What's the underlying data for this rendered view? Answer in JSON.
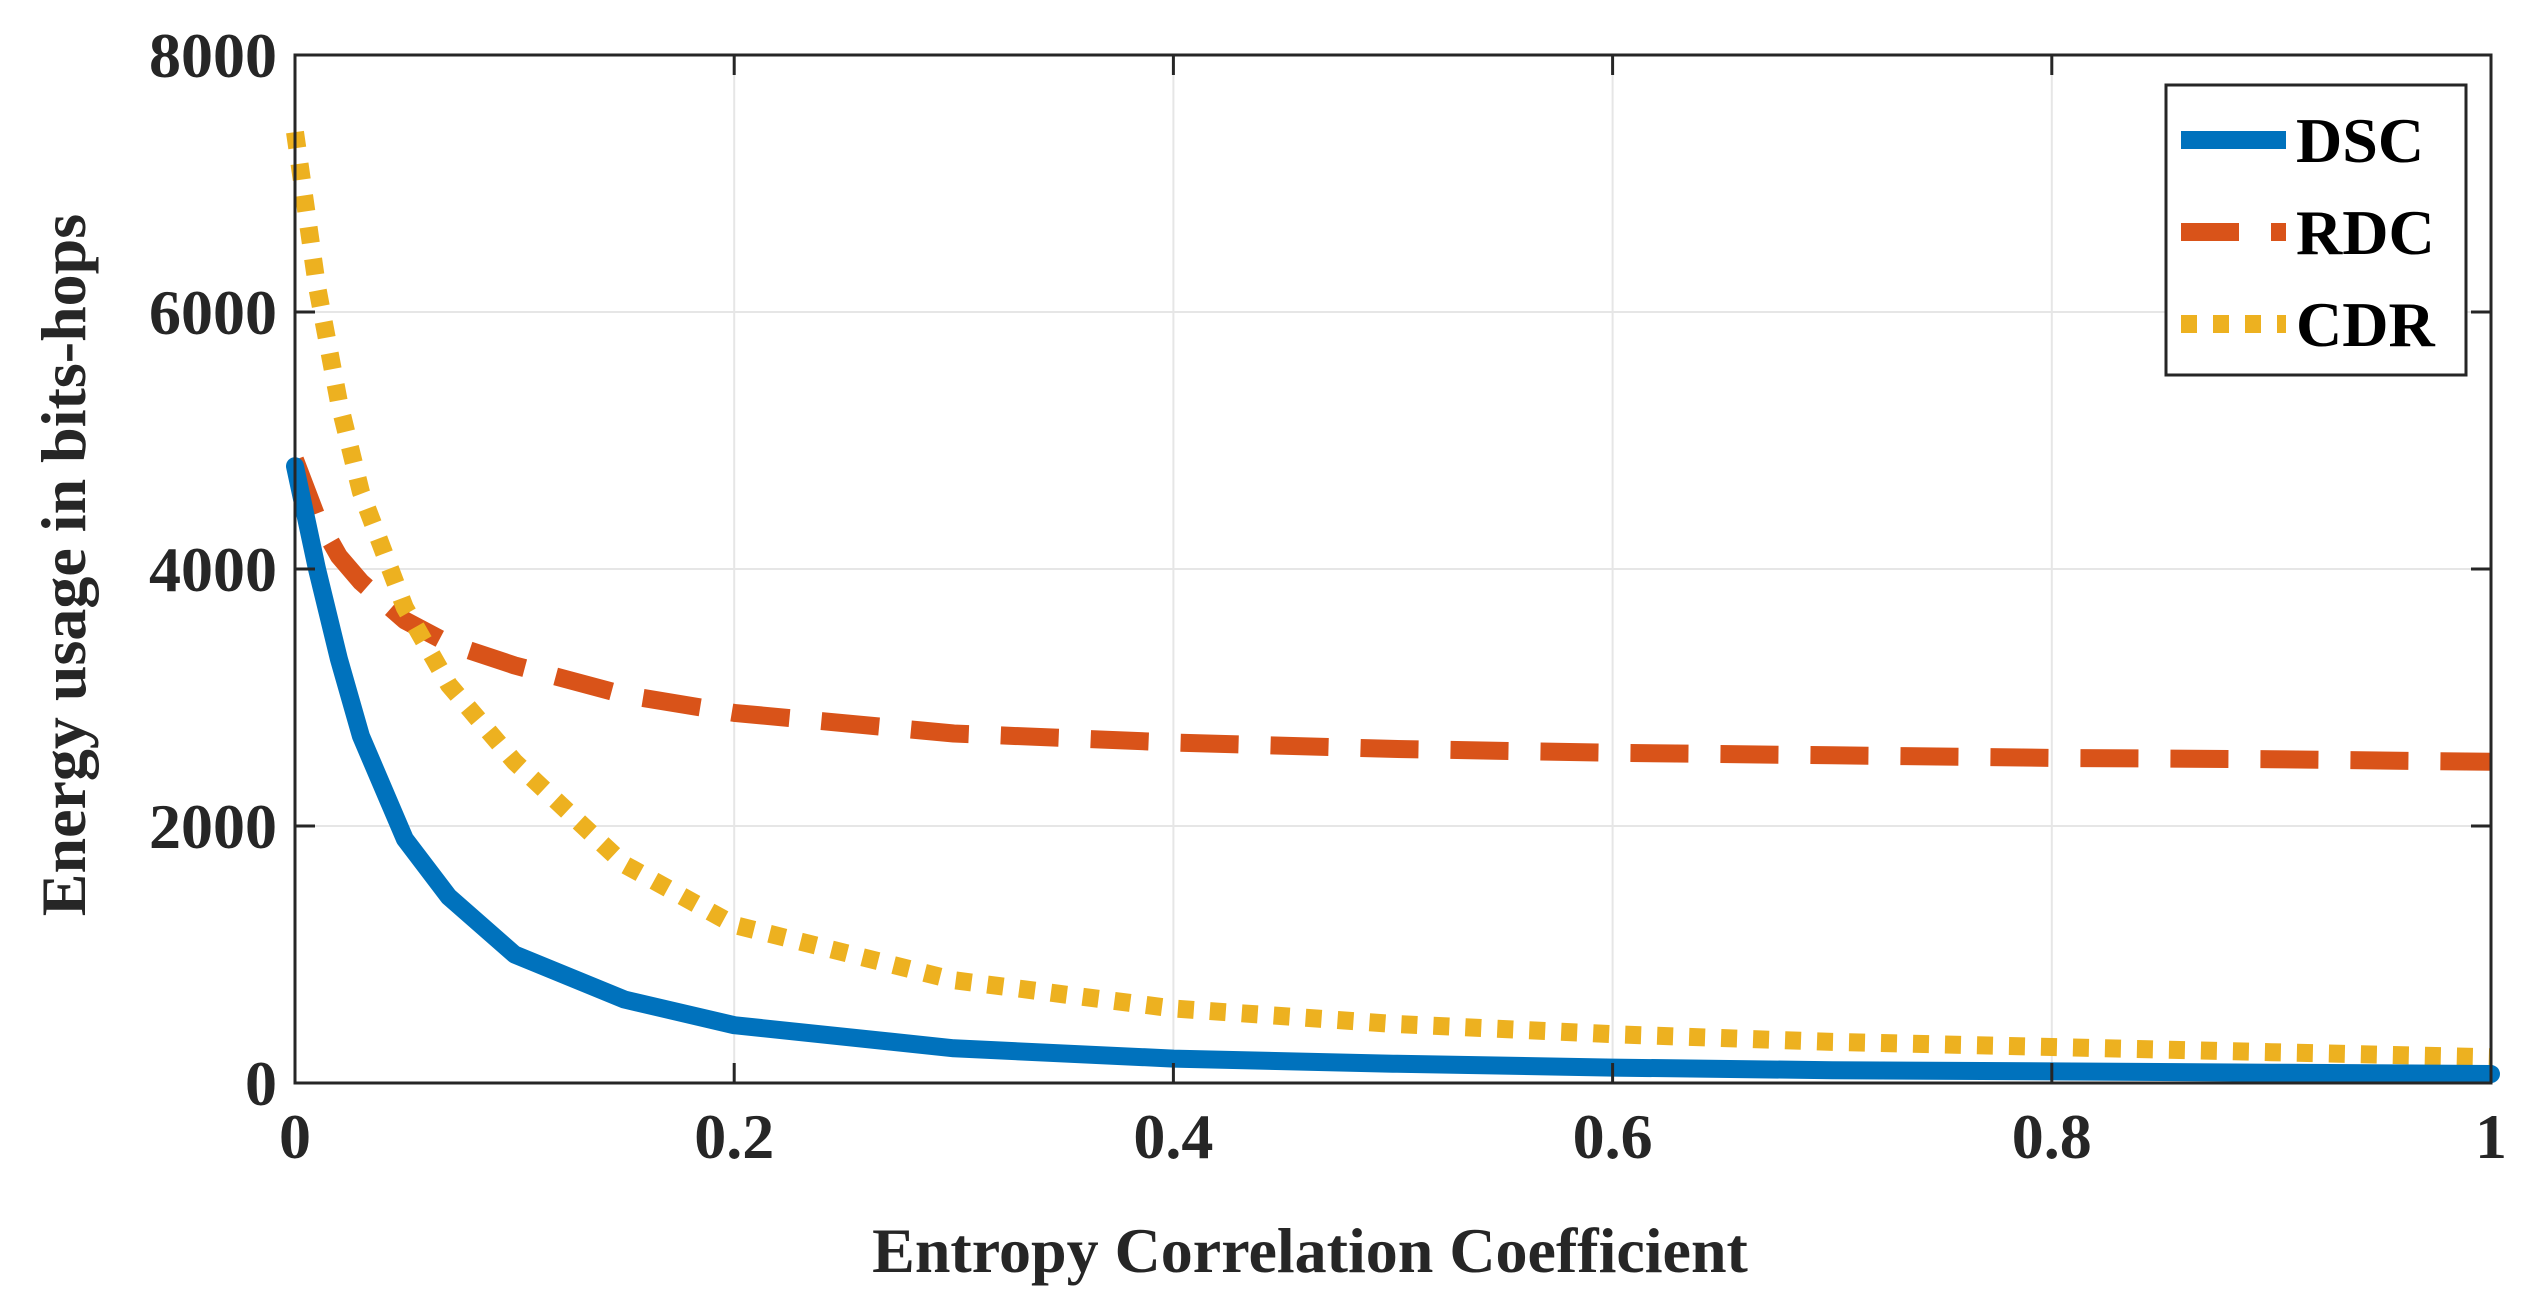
{
  "chart_data": {
    "type": "line",
    "title": "",
    "xlabel": "Entropy Correlation Coefficient",
    "ylabel": "Energy usage in bits-hops",
    "xlim": [
      0,
      1
    ],
    "ylim": [
      0,
      8000
    ],
    "xticks": [
      0,
      0.2,
      0.4,
      0.6,
      0.8,
      1
    ],
    "xtick_labels": [
      "0",
      "0.2",
      "0.4",
      "0.6",
      "0.8",
      "1"
    ],
    "yticks": [
      0,
      2000,
      4000,
      6000,
      8000
    ],
    "ytick_labels": [
      "0",
      "2000",
      "4000",
      "6000",
      "8000"
    ],
    "grid": true,
    "legend_position": "top-right",
    "x": [
      0,
      0.01,
      0.02,
      0.03,
      0.05,
      0.07,
      0.1,
      0.15,
      0.2,
      0.3,
      0.4,
      0.5,
      0.6,
      0.7,
      0.8,
      0.9,
      1.0
    ],
    "series": [
      {
        "name": "DSC",
        "color": "#0072BD",
        "style": "solid",
        "values": [
          4800,
          4000,
          3300,
          2700,
          1900,
          1450,
          1000,
          650,
          450,
          270,
          190,
          150,
          120,
          100,
          90,
          80,
          70
        ]
      },
      {
        "name": "RDC",
        "color": "#D95319",
        "style": "dashed",
        "values": [
          4850,
          4400,
          4100,
          3900,
          3600,
          3420,
          3250,
          3020,
          2880,
          2720,
          2650,
          2600,
          2570,
          2550,
          2530,
          2520,
          2500
        ]
      },
      {
        "name": "CDR",
        "color": "#EDB120",
        "style": "dotted",
        "values": [
          7400,
          6200,
          5300,
          4600,
          3700,
          3100,
          2500,
          1700,
          1230,
          800,
          580,
          460,
          380,
          320,
          280,
          240,
          200
        ]
      }
    ]
  }
}
